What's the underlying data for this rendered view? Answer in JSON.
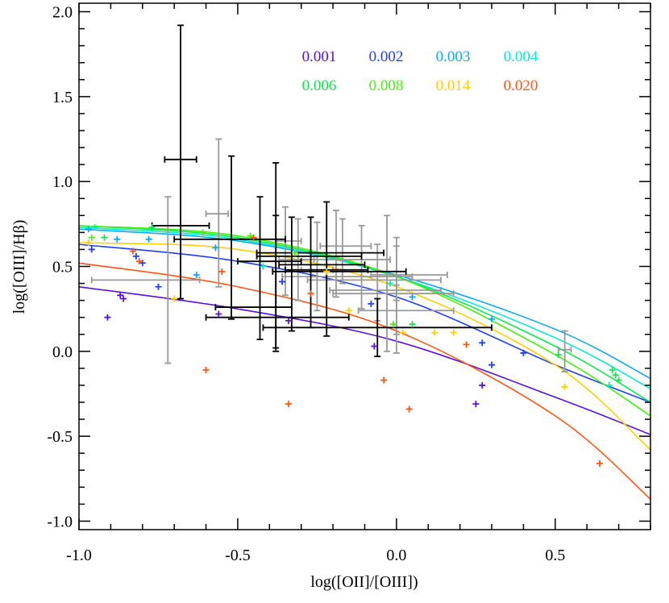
{
  "chart_data": {
    "type": "scatter",
    "xlabel": "log([OII]/[OIII])",
    "ylabel": "log([OIII]/Hβ)",
    "xlim": [
      -1.0,
      0.8
    ],
    "ylim": [
      -1.05,
      2.05
    ],
    "xticks": [
      "-1.0",
      "-0.5",
      "0.0",
      "0.5"
    ],
    "xtick_values": [
      -1.0,
      -0.5,
      0.0,
      0.5
    ],
    "yticks": [
      "-1.0",
      "-0.5",
      "0.0",
      "0.5",
      "1.0",
      "1.5",
      "2.0"
    ],
    "ytick_values": [
      -1.0,
      -0.5,
      0.0,
      0.5,
      1.0,
      1.5,
      2.0
    ],
    "grid": false,
    "legend_placement": "top-right",
    "series": [
      {
        "name": "0.001",
        "color": "#5a10d8",
        "curve": [
          [
            -1.0,
            0.38
          ],
          [
            -0.5,
            0.25
          ],
          [
            0.0,
            0.06
          ],
          [
            0.5,
            -0.27
          ],
          [
            0.8,
            -0.49
          ]
        ],
        "points": [
          [
            -0.91,
            0.2
          ],
          [
            -0.87,
            0.33
          ],
          [
            -0.86,
            0.31
          ],
          [
            -0.56,
            0.22
          ],
          [
            -0.34,
            0.18
          ],
          [
            -0.07,
            0.03
          ],
          [
            0.25,
            -0.31
          ],
          [
            0.27,
            -0.2
          ]
        ]
      },
      {
        "name": "0.002",
        "color": "#2040f0",
        "curve": [
          [
            -1.0,
            0.63
          ],
          [
            -0.5,
            0.53
          ],
          [
            0.0,
            0.32
          ],
          [
            0.5,
            -0.08
          ],
          [
            0.8,
            -0.3
          ]
        ],
        "points": [
          [
            -0.96,
            0.6
          ],
          [
            -0.82,
            0.56
          ],
          [
            -0.8,
            0.52
          ],
          [
            -0.75,
            0.38
          ],
          [
            -0.36,
            0.41
          ],
          [
            -0.08,
            0.28
          ],
          [
            0.27,
            0.05
          ],
          [
            0.3,
            -0.08
          ],
          [
            0.4,
            -0.01
          ]
        ]
      },
      {
        "name": "0.003",
        "color": "#10a8ff",
        "curve": [
          [
            -1.0,
            0.72
          ],
          [
            -0.5,
            0.65
          ],
          [
            0.0,
            0.45
          ],
          [
            0.5,
            0.13
          ],
          [
            0.8,
            -0.16
          ]
        ],
        "points": [
          [
            -0.97,
            0.72
          ],
          [
            -0.88,
            0.66
          ],
          [
            -0.78,
            0.66
          ],
          [
            -0.63,
            0.45
          ],
          [
            -0.57,
            0.61
          ],
          [
            0.05,
            0.32
          ],
          [
            0.3,
            0.19
          ]
        ]
      },
      {
        "name": "0.004",
        "color": "#10e8d0",
        "curve": [
          [
            -1.0,
            0.73
          ],
          [
            -0.5,
            0.66
          ],
          [
            0.0,
            0.44
          ],
          [
            0.5,
            0.08
          ],
          [
            0.8,
            -0.22
          ]
        ],
        "points": [
          [
            -0.95,
            0.73
          ],
          [
            -0.42,
            0.5
          ],
          [
            -0.02,
            0.4
          ],
          [
            0.67,
            -0.2
          ]
        ]
      },
      {
        "name": "0.006",
        "color": "#10e850",
        "curve": [
          [
            -1.0,
            0.74
          ],
          [
            -0.5,
            0.67
          ],
          [
            0.0,
            0.44
          ],
          [
            0.5,
            0.03
          ],
          [
            0.8,
            -0.3
          ]
        ],
        "points": [
          [
            -0.92,
            0.67
          ],
          [
            -0.77,
            0.73
          ],
          [
            0.05,
            0.16
          ],
          [
            0.51,
            -0.02
          ],
          [
            0.68,
            -0.11
          ],
          [
            0.69,
            -0.14
          ],
          [
            0.7,
            -0.17
          ]
        ]
      },
      {
        "name": "0.008",
        "color": "#48f010",
        "curve": [
          [
            -1.0,
            0.74
          ],
          [
            -0.5,
            0.68
          ],
          [
            0.0,
            0.44
          ],
          [
            0.5,
            -0.02
          ],
          [
            0.8,
            -0.38
          ]
        ],
        "points": [
          [
            -0.96,
            0.67
          ],
          [
            -0.61,
            0.7
          ],
          [
            -0.46,
            0.68
          ],
          [
            -0.32,
            0.58
          ],
          [
            -0.01,
            0.16
          ]
        ]
      },
      {
        "name": "0.014",
        "color": "#ffd000",
        "curve": [
          [
            -1.0,
            0.64
          ],
          [
            -0.5,
            0.6
          ],
          [
            0.0,
            0.38
          ],
          [
            0.5,
            -0.08
          ],
          [
            0.8,
            -0.58
          ]
        ],
        "points": [
          [
            -0.97,
            0.64
          ],
          [
            -0.7,
            0.31
          ],
          [
            -0.22,
            0.47
          ],
          [
            -0.15,
            0.24
          ],
          [
            0.02,
            0.11
          ],
          [
            0.12,
            0.11
          ],
          [
            0.18,
            0.11
          ],
          [
            0.53,
            -0.21
          ]
        ]
      },
      {
        "name": "0.020",
        "color": "#ff5510",
        "curve": [
          [
            -1.0,
            0.52
          ],
          [
            -0.5,
            0.38
          ],
          [
            0.0,
            0.12
          ],
          [
            0.5,
            -0.38
          ],
          [
            0.8,
            -0.87
          ]
        ],
        "points": [
          [
            -0.83,
            0.59
          ],
          [
            -0.81,
            0.53
          ],
          [
            -0.6,
            -0.11
          ],
          [
            -0.55,
            0.47
          ],
          [
            -0.45,
            0.67
          ],
          [
            -0.34,
            -0.31
          ],
          [
            -0.27,
            0.34
          ],
          [
            -0.04,
            -0.17
          ],
          [
            0.04,
            -0.34
          ],
          [
            0.22,
            0.04
          ],
          [
            0.64,
            -0.66
          ]
        ]
      }
    ],
    "error_points": [
      {
        "color": "#000000",
        "x": -0.68,
        "y": 1.13,
        "xlo": -0.73,
        "xhi": -0.63,
        "ylo": 0.31,
        "yhi": 1.92
      },
      {
        "color": "#000000",
        "x": -0.68,
        "y": 0.74,
        "xlo": -0.77,
        "xhi": -0.59,
        "ylo": 0.74,
        "yhi": 0.74
      },
      {
        "color": "#000000",
        "x": -0.52,
        "y": 0.66,
        "xlo": -0.7,
        "xhi": -0.35,
        "ylo": 0.19,
        "yhi": 1.15
      },
      {
        "color": "#000000",
        "x": -0.43,
        "y": 0.26,
        "xlo": -0.57,
        "xhi": -0.33,
        "ylo": 0.07,
        "yhi": 0.91
      },
      {
        "color": "#000000",
        "x": -0.38,
        "y": 0.58,
        "xlo": -0.44,
        "xhi": -0.04,
        "ylo": 0.0,
        "yhi": 1.11
      },
      {
        "color": "#000000",
        "x": -0.38,
        "y": 0.2,
        "xlo": -0.6,
        "xhi": -0.15,
        "ylo": 0.02,
        "yhi": 0.8
      },
      {
        "color": "#000000",
        "x": -0.33,
        "y": 0.53,
        "xlo": -0.5,
        "xhi": -0.3,
        "ylo": 0.12,
        "yhi": 0.79
      },
      {
        "color": "#000000",
        "x": -0.27,
        "y": 0.51,
        "xlo": -0.37,
        "xhi": -0.1,
        "ylo": 0.14,
        "yhi": 0.79
      },
      {
        "color": "#000000",
        "x": -0.22,
        "y": 0.47,
        "xlo": -0.39,
        "xhi": 0.03,
        "ylo": 0.09,
        "yhi": 0.88
      },
      {
        "color": "#000000",
        "x": -0.06,
        "y": 0.14,
        "xlo": -0.42,
        "xhi": 0.3,
        "ylo": -0.03,
        "yhi": 0.31
      },
      {
        "color": "#000000",
        "x": -0.18,
        "y": 0.48,
        "xlo": -0.35,
        "xhi": -0.09,
        "ylo": 0.48,
        "yhi": 0.48
      },
      {
        "color": "#000000",
        "x": -0.3,
        "y": 0.56,
        "xlo": -0.44,
        "xhi": -0.11,
        "ylo": 0.56,
        "yhi": 0.56
      }
    ],
    "error_points_gray": [
      {
        "color": "#999999",
        "x": -0.72,
        "y": 0.42,
        "xlo": -0.96,
        "xhi": -0.62,
        "ylo": -0.07,
        "yhi": 0.91
      },
      {
        "color": "#999999",
        "x": -0.56,
        "y": 0.81,
        "xlo": -0.6,
        "xhi": -0.53,
        "ylo": 0.38,
        "yhi": 1.25
      },
      {
        "color": "#999999",
        "x": -0.35,
        "y": 0.65,
        "xlo": -0.38,
        "xhi": -0.3,
        "ylo": 0.33,
        "yhi": 0.85
      },
      {
        "color": "#999999",
        "x": -0.31,
        "y": 0.54,
        "xlo": -0.37,
        "xhi": -0.25,
        "ylo": 0.3,
        "yhi": 0.78
      },
      {
        "color": "#999999",
        "x": -0.25,
        "y": 0.48,
        "xlo": -0.3,
        "xhi": -0.2,
        "ylo": 0.24,
        "yhi": 0.76
      },
      {
        "color": "#999999",
        "x": -0.19,
        "y": 0.54,
        "xlo": -0.26,
        "xhi": -0.02,
        "ylo": 0.32,
        "yhi": 0.83
      },
      {
        "color": "#999999",
        "x": -0.17,
        "y": 0.62,
        "xlo": -0.24,
        "xhi": -0.08,
        "ylo": 0.4,
        "yhi": 0.78
      },
      {
        "color": "#999999",
        "x": -0.11,
        "y": 0.44,
        "xlo": -0.36,
        "xhi": 0.05,
        "ylo": 0.25,
        "yhi": 0.74
      },
      {
        "color": "#999999",
        "x": -0.06,
        "y": 0.36,
        "xlo": -0.21,
        "xhi": 0.14,
        "ylo": 0.18,
        "yhi": 0.63
      },
      {
        "color": "#999999",
        "x": -0.03,
        "y": 0.34,
        "xlo": -0.2,
        "xhi": 0.18,
        "ylo": 0.0,
        "yhi": 0.8
      },
      {
        "color": "#999999",
        "x": 0.0,
        "y": 0.42,
        "xlo": -0.28,
        "xhi": 0.14,
        "ylo": -0.01,
        "yhi": 0.67
      },
      {
        "color": "#999999",
        "x": 0.0,
        "y": 0.45,
        "xlo": -0.08,
        "xhi": 0.16,
        "ylo": 0.3,
        "yhi": 0.62
      },
      {
        "color": "#999999",
        "x": 0.0,
        "y": 0.24,
        "xlo": -0.12,
        "xhi": 0.18,
        "ylo": 0.1,
        "yhi": 0.39
      },
      {
        "color": "#999999",
        "x": 0.53,
        "y": 0.01,
        "xlo": 0.51,
        "xhi": 0.55,
        "ylo": -0.12,
        "yhi": 0.12
      }
    ]
  }
}
